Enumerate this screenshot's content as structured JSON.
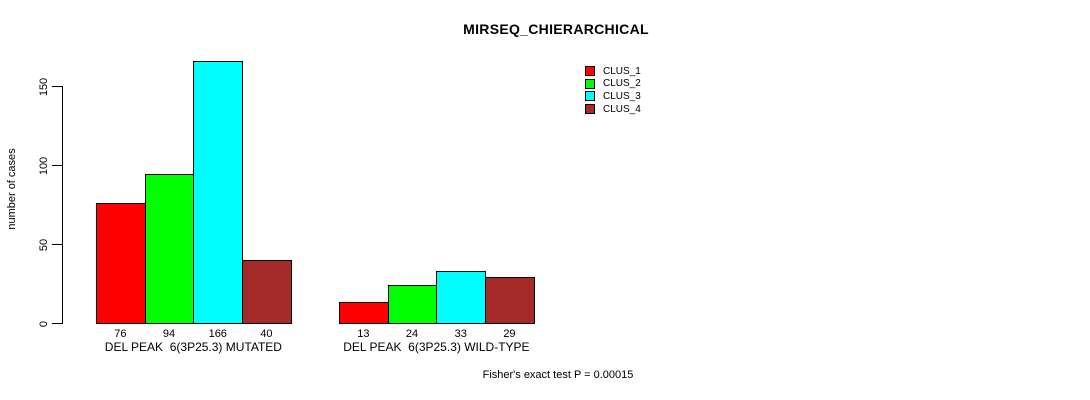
{
  "chart_data": {
    "type": "bar",
    "title": "MIRSEQ_CHIERARCHICAL",
    "ylabel": "number of cases",
    "xlabel": "",
    "categories": [
      "DEL PEAK  6(3P25.3) MUTATED",
      "DEL PEAK  6(3P25.3) WILD-TYPE"
    ],
    "series": [
      {
        "name": "CLUS_1",
        "color": "#FF0000",
        "values": [
          76,
          13
        ]
      },
      {
        "name": "CLUS_2",
        "color": "#00FF00",
        "values": [
          94,
          24
        ]
      },
      {
        "name": "CLUS_3",
        "color": "#00FFFF",
        "values": [
          166,
          33
        ]
      },
      {
        "name": "CLUS_4",
        "color": "#A52A2A",
        "values": [
          40,
          29
        ]
      }
    ],
    "yticks": [
      0,
      50,
      100,
      150
    ],
    "ylim": [
      0,
      175
    ],
    "grid": false,
    "legend_position": "top-right",
    "bar_labels": true,
    "annotation": "Fisher's exact test P = 0.00015"
  }
}
